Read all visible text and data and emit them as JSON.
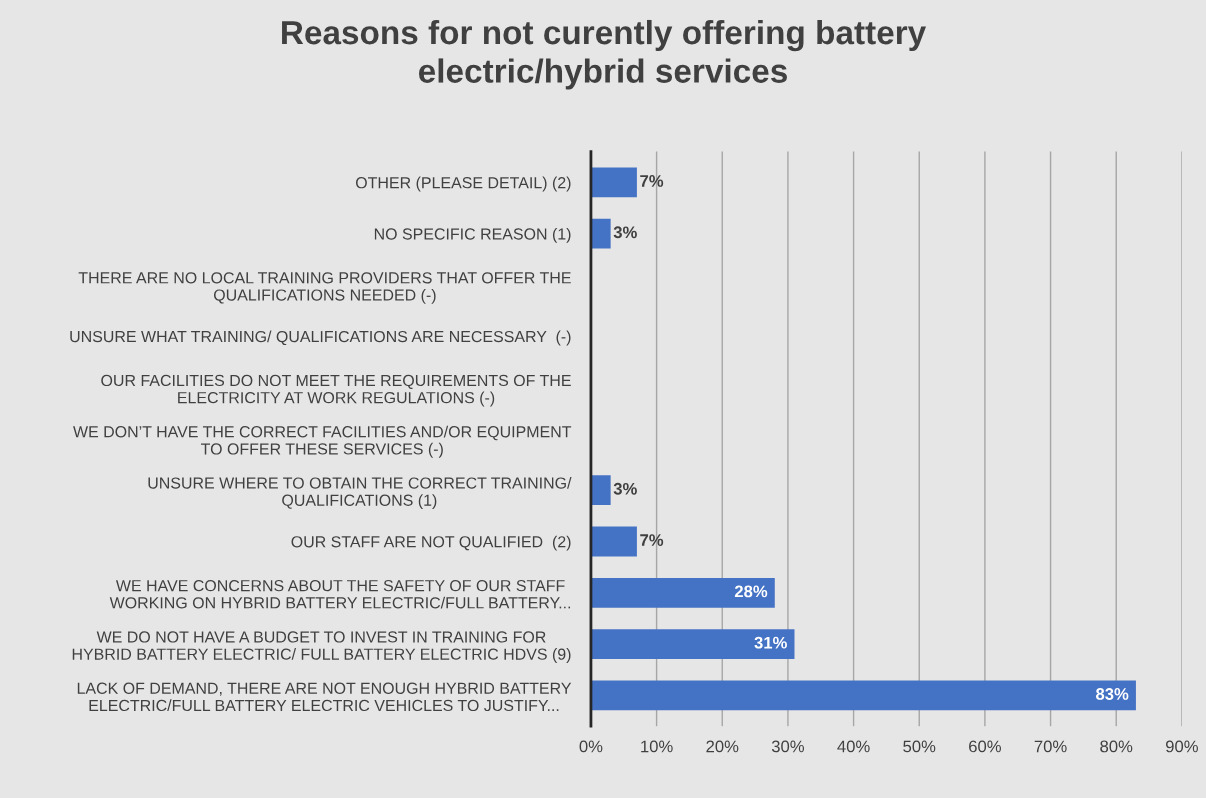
{
  "chart_data": {
    "type": "bar",
    "orientation": "horizontal",
    "title": "Reasons for not curently offering battery\nelectric/hybrid services",
    "categories": [
      "OTHER (PLEASE DETAIL) (2)",
      "NO SPECIFIC REASON (1)",
      "THERE ARE NO LOCAL TRAINING PROVIDERS THAT OFFER THE\nQUALIFICATIONS NEEDED (-)",
      "UNSURE WHAT TRAINING/ QUALIFICATIONS ARE NECESSARY  (-)",
      "OUR FACILITIES DO NOT MEET THE REQUIREMENTS OF THE\nELECTRICITY AT WORK REGULATIONS (-)",
      "WE DON’T HAVE THE CORRECT FACILITIES AND/OR EQUIPMENT\nTO OFFER THESE SERVICES (-)",
      "UNSURE WHERE TO OBTAIN THE CORRECT TRAINING/\nQUALIFICATIONS (1)",
      "OUR STAFF ARE NOT QUALIFIED  (2)",
      "WE HAVE CONCERNS ABOUT THE SAFETY OF OUR STAFF\nWORKING ON HYBRID BATTERY ELECTRIC/FULL BATTERY...",
      "WE DO NOT HAVE A BUDGET TO INVEST IN TRAINING FOR\nHYBRID BATTERY ELECTRIC/ FULL BATTERY ELECTRIC HDVS (9)",
      "LACK OF DEMAND, THERE ARE NOT ENOUGH HYBRID BATTERY\nELECTRIC/FULL BATTERY ELECTRIC VEHICLES TO JUSTIFY..."
    ],
    "values": [
      7,
      3,
      0,
      0,
      0,
      0,
      3,
      7,
      28,
      31,
      83
    ],
    "value_labels": [
      "7%",
      "3%",
      null,
      null,
      null,
      null,
      "3%",
      "7%",
      "28%",
      "31%",
      "83%"
    ],
    "color": "#4472c4",
    "xlim": [
      0,
      90
    ],
    "xticks": [
      {
        "value": 0,
        "label": "0%"
      },
      {
        "value": 10,
        "label": "10%"
      },
      {
        "value": 20,
        "label": "20%"
      },
      {
        "value": 30,
        "label": "30%"
      },
      {
        "value": 40,
        "label": "40%"
      },
      {
        "value": 50,
        "label": "50%"
      },
      {
        "value": 60,
        "label": "60%"
      },
      {
        "value": 70,
        "label": "70%"
      },
      {
        "value": 80,
        "label": "80%"
      },
      {
        "value": 90,
        "label": "90%"
      }
    ],
    "grid": "x"
  }
}
